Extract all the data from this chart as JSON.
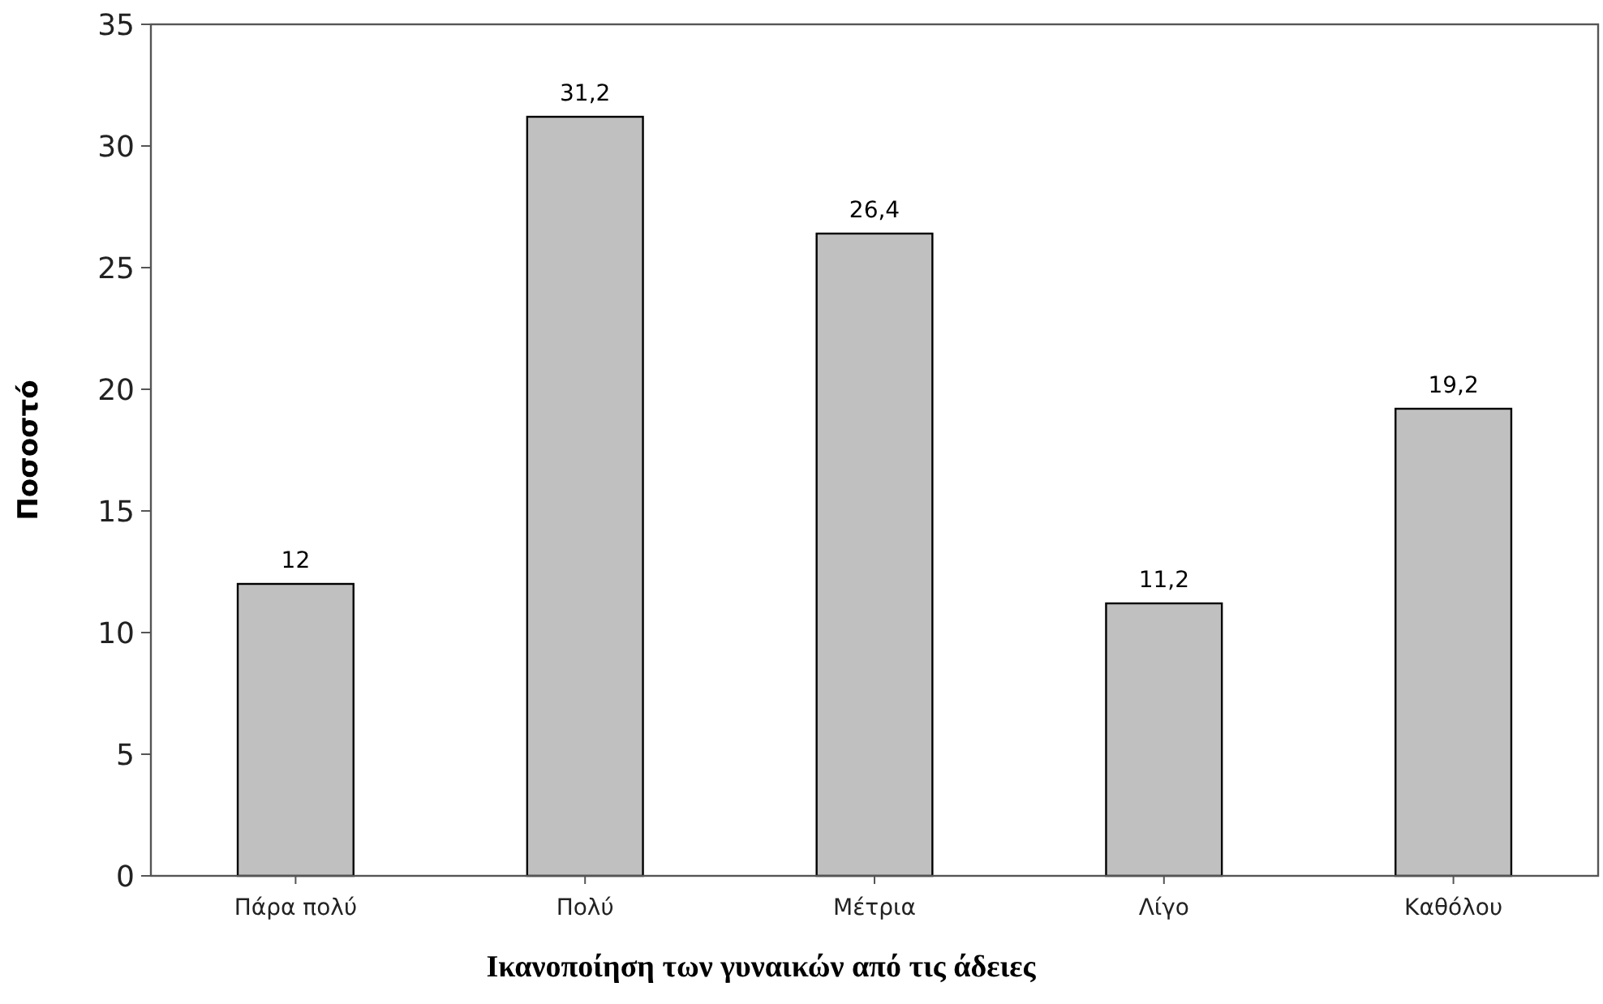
{
  "chart_data": {
    "type": "bar",
    "xlabel": "Ικανοποίηση των γυναικών από τις άδειες",
    "ylabel": "Ποσοστό",
    "categories": [
      "Πάρα πολύ",
      "Πολύ",
      "Μέτρια",
      "Λίγο",
      "Καθόλου"
    ],
    "values": [
      12,
      31.2,
      26.4,
      11.2,
      19.2
    ],
    "value_labels": [
      "12",
      "31,2",
      "26,4",
      "11,2",
      "19,2"
    ],
    "color": "#c0c0c0",
    "ylim": [
      0,
      35
    ],
    "yticks": [
      0,
      5,
      10,
      15,
      20,
      25,
      30,
      35
    ],
    "grid": false
  }
}
